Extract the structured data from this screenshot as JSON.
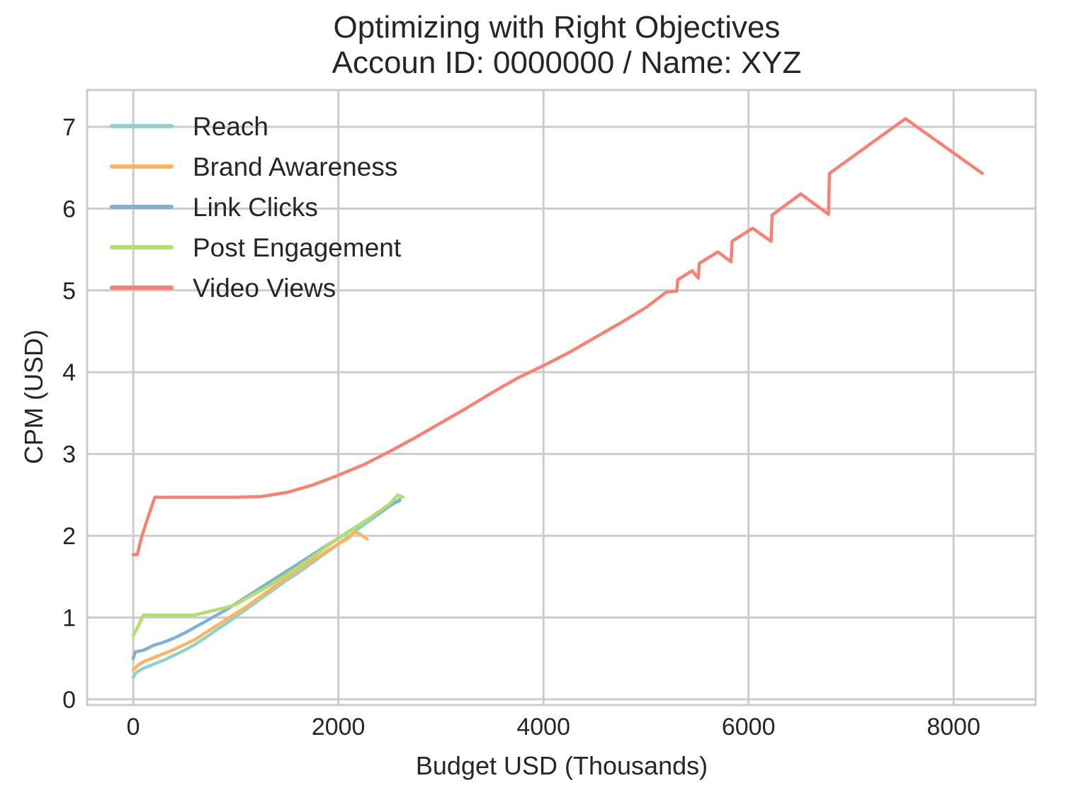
{
  "chart_data": {
    "type": "line",
    "title": "Optimizing with Right Objectives",
    "subtitle": "Accoun ID: 0000000 / Name: XYZ",
    "xlabel": "Budget USD (Thousands)",
    "ylabel": "CPM (USD)",
    "xlim": [
      -450,
      8800
    ],
    "ylim": [
      -0.07,
      7.45
    ],
    "xticks": [
      0,
      2000,
      4000,
      6000,
      8000
    ],
    "yticks": [
      0,
      1,
      2,
      3,
      4,
      5,
      6,
      7
    ],
    "grid": true,
    "legend_position": "top-left",
    "series": [
      {
        "name": "Reach",
        "color": "#8dd3c7",
        "points": [
          [
            0,
            0.27
          ],
          [
            30,
            0.33
          ],
          [
            100,
            0.38
          ],
          [
            200,
            0.43
          ],
          [
            300,
            0.48
          ],
          [
            400,
            0.54
          ],
          [
            500,
            0.6
          ],
          [
            600,
            0.67
          ],
          [
            700,
            0.75
          ],
          [
            800,
            0.84
          ],
          [
            900,
            0.92
          ],
          [
            1000,
            1.01
          ],
          [
            1100,
            1.1
          ],
          [
            1200,
            1.19
          ],
          [
            1300,
            1.28
          ],
          [
            1400,
            1.37
          ],
          [
            1500,
            1.46
          ],
          [
            1600,
            1.54
          ],
          [
            1700,
            1.63
          ],
          [
            1800,
            1.72
          ],
          [
            1900,
            1.81
          ],
          [
            2000,
            1.9
          ],
          [
            2100,
            1.99
          ],
          [
            2200,
            2.09
          ],
          [
            2300,
            2.18
          ],
          [
            2400,
            2.27
          ],
          [
            2500,
            2.36
          ],
          [
            2600,
            2.45
          ]
        ]
      },
      {
        "name": "Brand Awareness",
        "color": "#fdb462",
        "points": [
          [
            0,
            0.36
          ],
          [
            50,
            0.42
          ],
          [
            100,
            0.46
          ],
          [
            200,
            0.51
          ],
          [
            300,
            0.56
          ],
          [
            400,
            0.61
          ],
          [
            500,
            0.67
          ],
          [
            600,
            0.73
          ],
          [
            700,
            0.81
          ],
          [
            800,
            0.89
          ],
          [
            900,
            0.97
          ],
          [
            1000,
            1.05
          ],
          [
            1100,
            1.13
          ],
          [
            1200,
            1.22
          ],
          [
            1300,
            1.31
          ],
          [
            1400,
            1.4
          ],
          [
            1500,
            1.49
          ],
          [
            1600,
            1.58
          ],
          [
            1700,
            1.66
          ],
          [
            1800,
            1.74
          ],
          [
            1900,
            1.82
          ],
          [
            2000,
            1.9
          ],
          [
            2100,
            1.97
          ],
          [
            2150,
            2.04
          ],
          [
            2200,
            2.03
          ],
          [
            2280,
            1.96
          ]
        ]
      },
      {
        "name": "Link Clicks",
        "color": "#80b1d3",
        "points": [
          [
            0,
            0.5
          ],
          [
            20,
            0.58
          ],
          [
            100,
            0.6
          ],
          [
            200,
            0.66
          ],
          [
            300,
            0.7
          ],
          [
            400,
            0.75
          ],
          [
            500,
            0.81
          ],
          [
            600,
            0.88
          ],
          [
            700,
            0.95
          ],
          [
            800,
            1.02
          ],
          [
            900,
            1.09
          ],
          [
            1000,
            1.17
          ],
          [
            1100,
            1.25
          ],
          [
            1200,
            1.33
          ],
          [
            1300,
            1.41
          ],
          [
            1400,
            1.49
          ],
          [
            1500,
            1.57
          ],
          [
            1600,
            1.65
          ],
          [
            1700,
            1.73
          ],
          [
            1800,
            1.81
          ],
          [
            1900,
            1.89
          ],
          [
            2000,
            1.97
          ],
          [
            2100,
            2.05
          ],
          [
            2200,
            2.13
          ],
          [
            2300,
            2.21
          ],
          [
            2400,
            2.29
          ],
          [
            2500,
            2.37
          ],
          [
            2600,
            2.43
          ]
        ]
      },
      {
        "name": "Post Engagement",
        "color": "#b3de69",
        "points": [
          [
            0,
            0.78
          ],
          [
            50,
            0.9
          ],
          [
            100,
            1.03
          ],
          [
            300,
            1.03
          ],
          [
            600,
            1.03
          ],
          [
            900,
            1.12
          ],
          [
            1000,
            1.16
          ],
          [
            1100,
            1.23
          ],
          [
            1200,
            1.3
          ],
          [
            1300,
            1.37
          ],
          [
            1400,
            1.45
          ],
          [
            1500,
            1.53
          ],
          [
            1600,
            1.61
          ],
          [
            1700,
            1.7
          ],
          [
            1800,
            1.79
          ],
          [
            1900,
            1.88
          ],
          [
            2000,
            1.97
          ],
          [
            2100,
            2.05
          ],
          [
            2200,
            2.13
          ],
          [
            2300,
            2.21
          ],
          [
            2400,
            2.3
          ],
          [
            2500,
            2.39
          ],
          [
            2580,
            2.5
          ],
          [
            2630,
            2.47
          ]
        ]
      },
      {
        "name": "Video Views",
        "color": "#fb8072",
        "points": [
          [
            0,
            1.77
          ],
          [
            40,
            1.77
          ],
          [
            80,
            1.98
          ],
          [
            150,
            2.25
          ],
          [
            210,
            2.47
          ],
          [
            600,
            2.47
          ],
          [
            1000,
            2.47
          ],
          [
            1250,
            2.48
          ],
          [
            1500,
            2.53
          ],
          [
            1750,
            2.62
          ],
          [
            2000,
            2.74
          ],
          [
            2250,
            2.87
          ],
          [
            2500,
            3.03
          ],
          [
            2750,
            3.2
          ],
          [
            3000,
            3.38
          ],
          [
            3250,
            3.56
          ],
          [
            3500,
            3.75
          ],
          [
            3750,
            3.93
          ],
          [
            4000,
            4.08
          ],
          [
            4250,
            4.24
          ],
          [
            4500,
            4.42
          ],
          [
            4750,
            4.6
          ],
          [
            5000,
            4.79
          ],
          [
            5200,
            4.98
          ],
          [
            5300,
            4.99
          ],
          [
            5310,
            5.13
          ],
          [
            5450,
            5.24
          ],
          [
            5510,
            5.15
          ],
          [
            5520,
            5.33
          ],
          [
            5700,
            5.47
          ],
          [
            5830,
            5.35
          ],
          [
            5840,
            5.6
          ],
          [
            6040,
            5.76
          ],
          [
            6220,
            5.6
          ],
          [
            6230,
            5.92
          ],
          [
            6510,
            6.18
          ],
          [
            6780,
            5.93
          ],
          [
            6790,
            6.43
          ],
          [
            7530,
            7.1
          ],
          [
            8280,
            6.43
          ]
        ]
      }
    ]
  }
}
